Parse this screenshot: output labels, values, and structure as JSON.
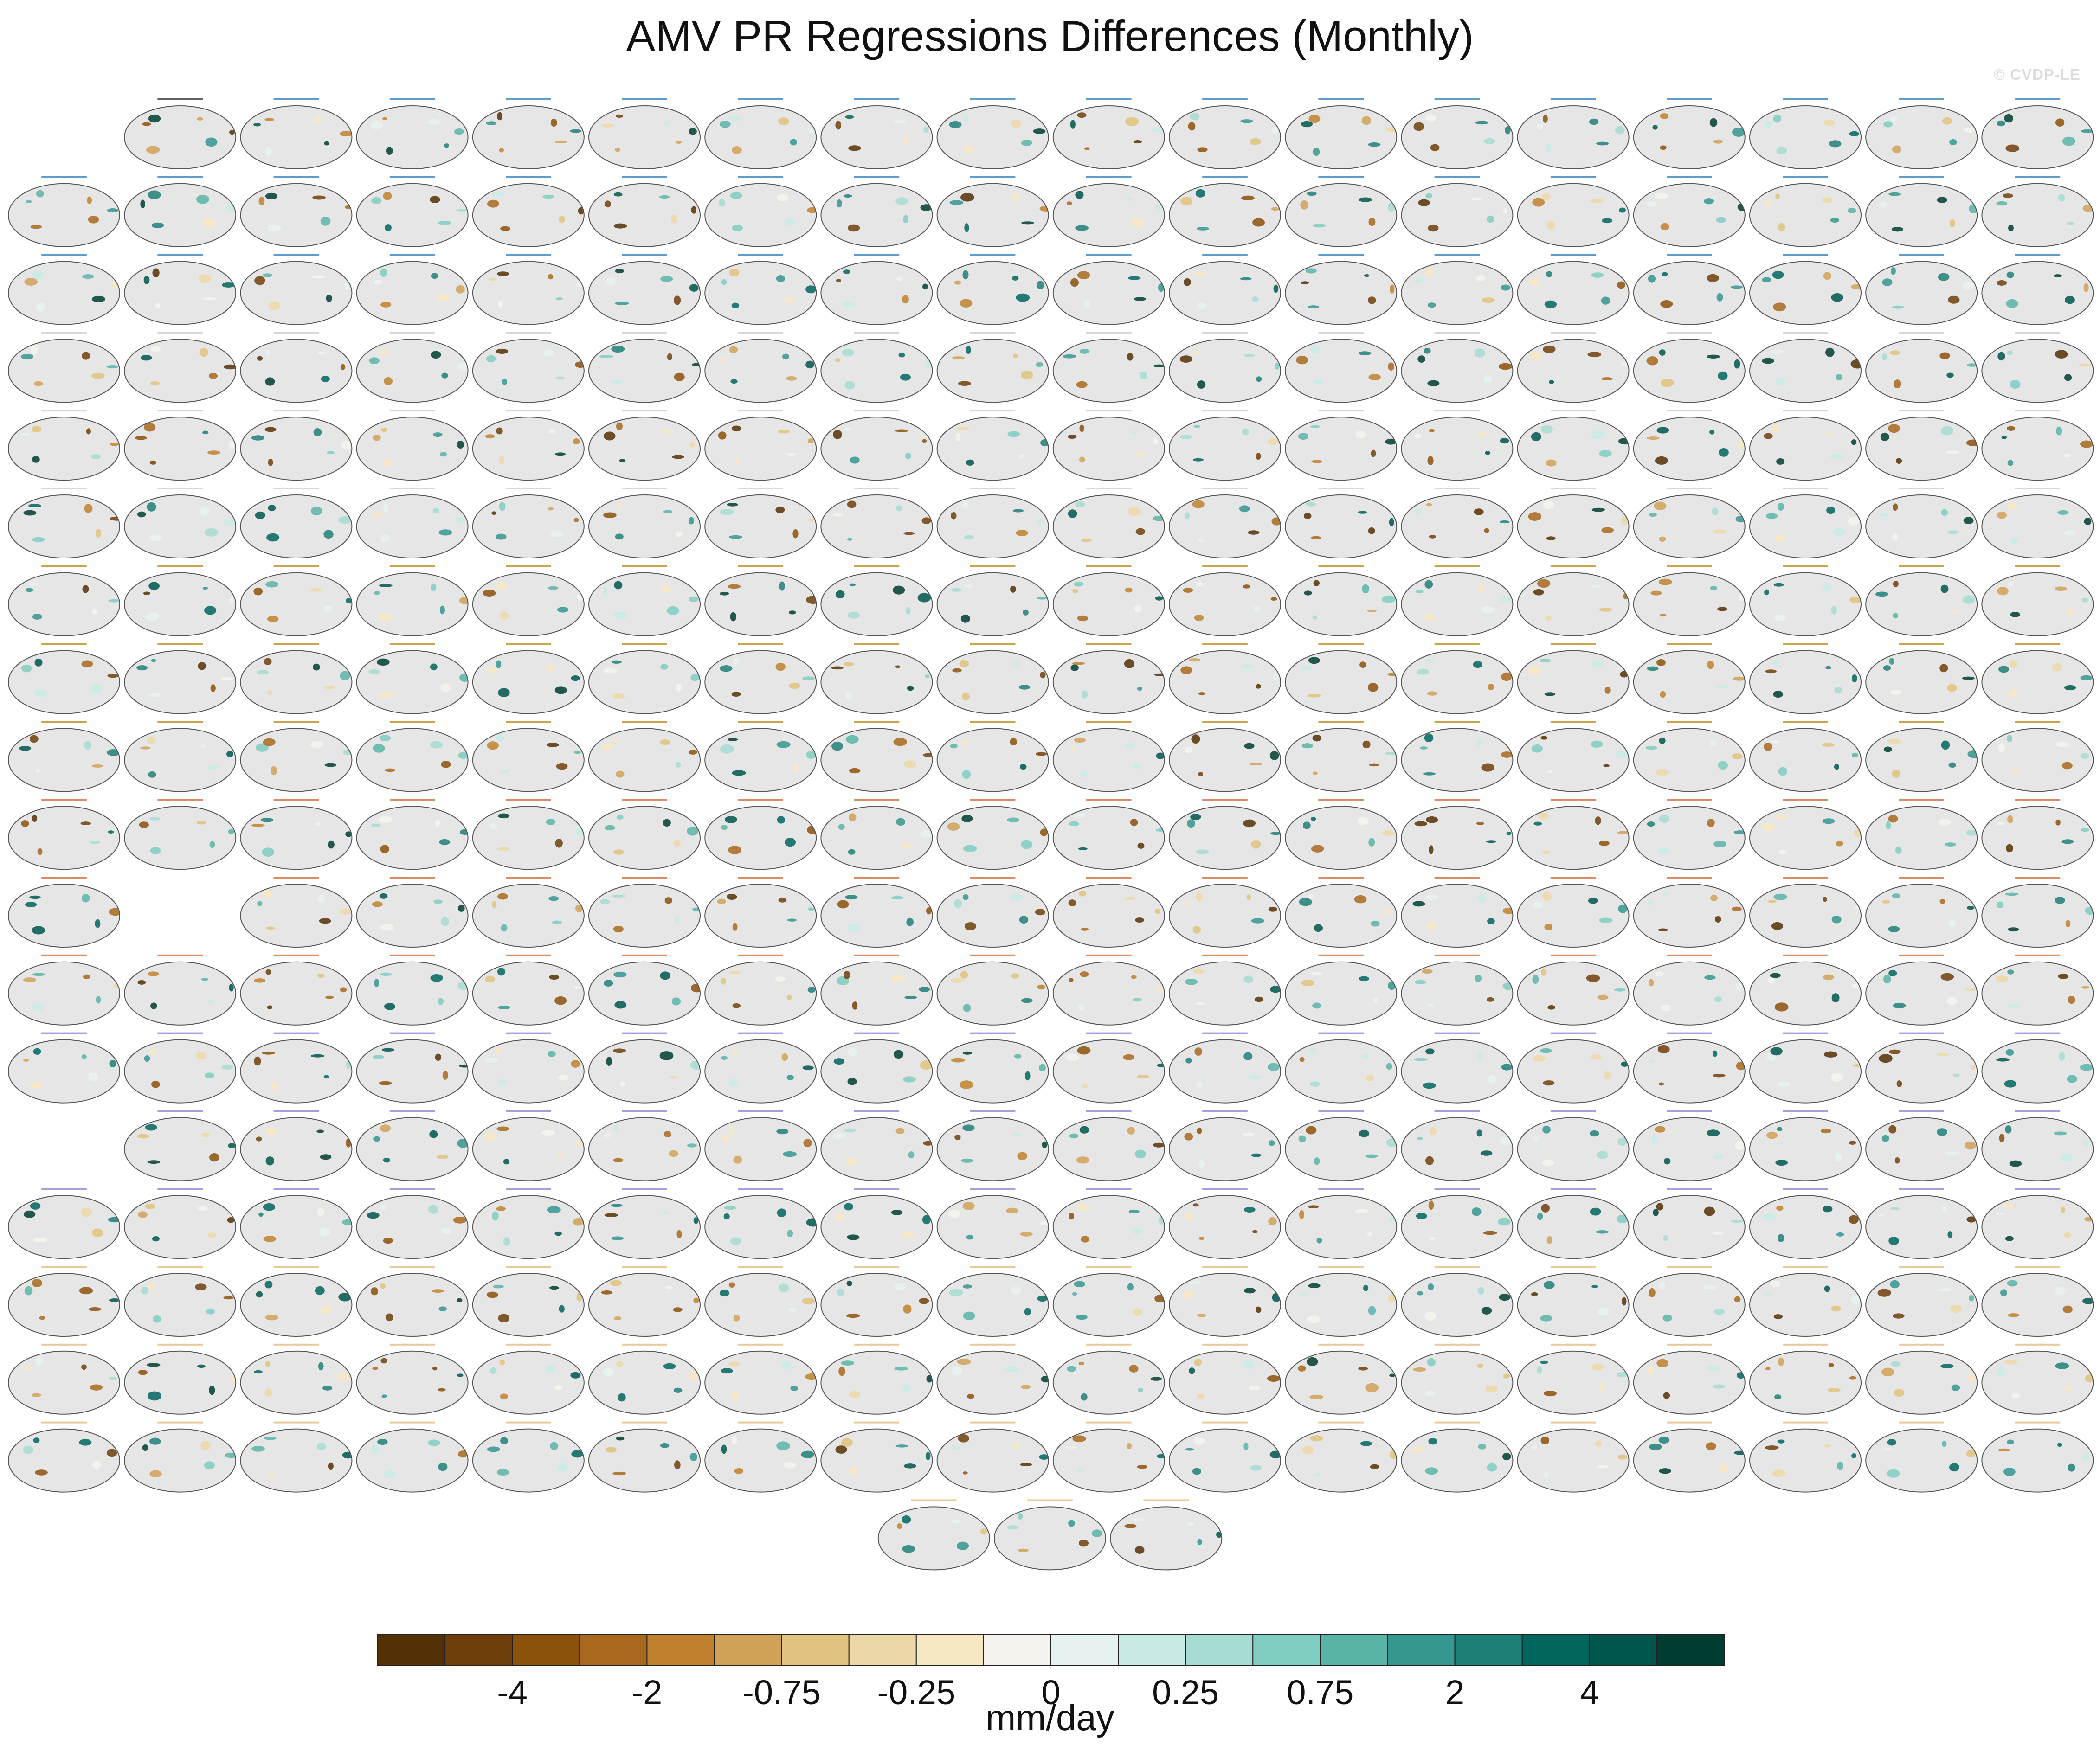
{
  "title": "AMV PR Regressions Differences (Monthly)",
  "watermark": "© CVDP-LE",
  "chart_data": {
    "type": "map",
    "projection": "robinson (pacific-centered)",
    "panel_grid": {
      "columns": 18,
      "rows": [
        {
          "filled": [
            1,
            2,
            3,
            4,
            5,
            6,
            7,
            8,
            9,
            10,
            11,
            12,
            13,
            14,
            15,
            16,
            17
          ]
        },
        {
          "filled": [
            0,
            1,
            2,
            3,
            4,
            5,
            6,
            7,
            8,
            9,
            10,
            11,
            12,
            13,
            14,
            15,
            16,
            17
          ]
        },
        {
          "filled": [
            0,
            1,
            2,
            3,
            4,
            5,
            6,
            7,
            8,
            9,
            10,
            11,
            12,
            13,
            14,
            15,
            16,
            17
          ]
        },
        {
          "filled": [
            0,
            1,
            2,
            3,
            4,
            5,
            6,
            7,
            8,
            9,
            10,
            11,
            12,
            13,
            14,
            15,
            16,
            17
          ]
        },
        {
          "filled": [
            0,
            1,
            2,
            3,
            4,
            5,
            6,
            7,
            8,
            9,
            10,
            11,
            12,
            13,
            14,
            15,
            16,
            17
          ]
        },
        {
          "filled": [
            0,
            1,
            2,
            3,
            4,
            5,
            6,
            7,
            8,
            9,
            10,
            11,
            12,
            13,
            14,
            15,
            16,
            17
          ]
        },
        {
          "filled": [
            0,
            1,
            2,
            3,
            4,
            5,
            6,
            7,
            8,
            9,
            10,
            11,
            12,
            13,
            14,
            15,
            16,
            17
          ]
        },
        {
          "filled": [
            0,
            1,
            2,
            3,
            4,
            5,
            6,
            7,
            8,
            9,
            10,
            11,
            12,
            13,
            14,
            15,
            16,
            17
          ]
        },
        {
          "filled": [
            0,
            1,
            2,
            3,
            4,
            5,
            6,
            7,
            8,
            9,
            10,
            11,
            12,
            13,
            14,
            15,
            16,
            17
          ]
        },
        {
          "filled": [
            0,
            1,
            2,
            3,
            4,
            5,
            6,
            7,
            8,
            9,
            10,
            11,
            12,
            13,
            14,
            15,
            16,
            17
          ]
        },
        {
          "filled": [
            0,
            2,
            3,
            4,
            5,
            6,
            7,
            8,
            9,
            10,
            11,
            12,
            13,
            14,
            15,
            16,
            17
          ]
        },
        {
          "filled": [
            0,
            1,
            2,
            3,
            4,
            5,
            6,
            7,
            8,
            9,
            10,
            11,
            12,
            13,
            14,
            15,
            16,
            17
          ]
        },
        {
          "filled": [
            0,
            1,
            2,
            3,
            4,
            5,
            6,
            7,
            8,
            9,
            10,
            11,
            12,
            13,
            14,
            15,
            16,
            17
          ]
        },
        {
          "filled": [
            1,
            2,
            3,
            4,
            5,
            6,
            7,
            8,
            9,
            10,
            11,
            12,
            13,
            14,
            15,
            16,
            17
          ]
        },
        {
          "filled": [
            0,
            1,
            2,
            3,
            4,
            5,
            6,
            7,
            8,
            9,
            10,
            11,
            12,
            13,
            14,
            15,
            16,
            17
          ]
        },
        {
          "filled": [
            0,
            1,
            2,
            3,
            4,
            5,
            6,
            7,
            8,
            9,
            10,
            11,
            12,
            13,
            14,
            15,
            16,
            17
          ]
        },
        {
          "filled": [
            0,
            1,
            2,
            3,
            4,
            5,
            6,
            7,
            8,
            9,
            10,
            11,
            12,
            13,
            14,
            15,
            16,
            17
          ]
        },
        {
          "filled": [
            0,
            1,
            2,
            3,
            4,
            5,
            6,
            7,
            8,
            9,
            10,
            11,
            12,
            13,
            14,
            15,
            16,
            17
          ]
        }
      ],
      "last_row_centered_count": 3
    },
    "panel_title_colors": [
      "#2a2a2a",
      "#2b7bba",
      "#c9c9c9",
      "#b8860b",
      "#cc6633",
      "#8a7fd1",
      "#e0b878"
    ],
    "colorbar": {
      "colors": [
        "#543005",
        "#6e3f0a",
        "#8c510a",
        "#a8681d",
        "#bf812d",
        "#d0a258",
        "#dfc27d",
        "#ecd8a6",
        "#f6e8c3",
        "#f5f3ed",
        "#e6f2f0",
        "#c7eae5",
        "#a6dcd2",
        "#80cdc1",
        "#5ab4a6",
        "#35978f",
        "#1e7f77",
        "#01665e",
        "#00564c",
        "#003c30"
      ],
      "tick_labels": [
        "-4",
        "-2",
        "-0.75",
        "-0.25",
        "0",
        "0.25",
        "0.75",
        "2",
        "4"
      ],
      "tick_boundary_index": [
        2,
        4,
        6,
        8,
        10,
        12,
        14,
        16,
        18
      ],
      "units": "mm/day"
    }
  }
}
